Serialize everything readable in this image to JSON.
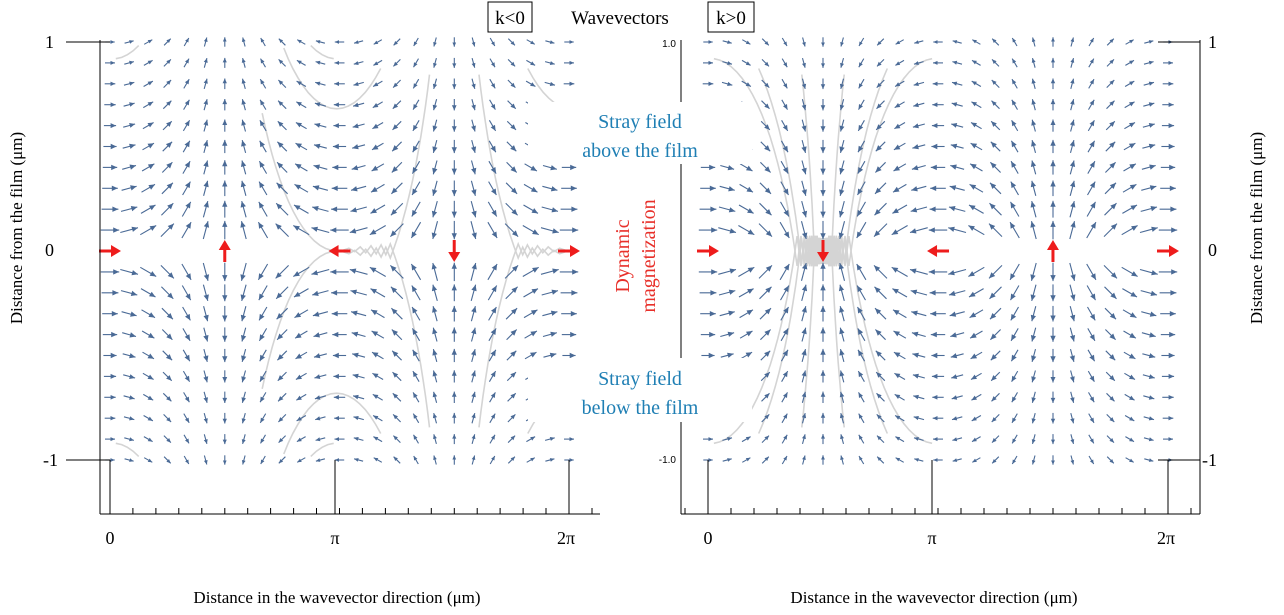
{
  "chart_data": {
    "type": "vector_field",
    "header": {
      "left_box": "k<0",
      "center": "Wavevectors",
      "right_box": "k>0"
    },
    "annotations": {
      "above_line1": "Stray field",
      "above_line2": "above the film",
      "middle_line1": "Dynamic",
      "middle_line2": "magnetization",
      "below_line1": "Stray field",
      "below_line2": "below the film"
    },
    "colors": {
      "field_arrows": "#4a6a96",
      "streamlines": "#d4d4d4",
      "magnetization": "#ee1c1c",
      "annotation_blue": "#1f7fb4",
      "annotation_red": "#e8302a"
    },
    "panels": [
      {
        "id": "left",
        "wavevector_sign": "k<0",
        "xlabel": "Distance in the wavevector direction (μm)",
        "ylabel": "Distance from the film (μm)",
        "x_ticks": [
          "0",
          "π",
          "2π"
        ],
        "y_ticks": [
          "1",
          "0",
          "-1"
        ],
        "xlim": [
          -0.2,
          6.5
        ],
        "ylim": [
          -1.25,
          1.03
        ],
        "magnetization": [
          {
            "x": 0.0,
            "direction": "right"
          },
          {
            "x": 1.571,
            "direction": "up"
          },
          {
            "x": 3.142,
            "direction": "left"
          },
          {
            "x": 4.712,
            "direction": "down"
          },
          {
            "x": 6.283,
            "direction": "right"
          }
        ]
      },
      {
        "id": "right",
        "wavevector_sign": "k>0",
        "xlabel": "Distance in the wavevector direction (μm)",
        "ylabel": "Distance from the film (μm)",
        "x_ticks": [
          "0",
          "π",
          "2π"
        ],
        "y_ticks_left": [
          "1.0",
          "-1.0"
        ],
        "y_ticks_right": [
          "1",
          "0",
          "-1"
        ],
        "xlim": [
          -0.2,
          6.5
        ],
        "ylim": [
          -1.25,
          1.03
        ],
        "magnetization": [
          {
            "x": 0.0,
            "direction": "right"
          },
          {
            "x": 1.571,
            "direction": "down"
          },
          {
            "x": 3.142,
            "direction": "left"
          },
          {
            "x": 4.712,
            "direction": "up"
          },
          {
            "x": 6.283,
            "direction": "right"
          }
        ]
      }
    ]
  }
}
